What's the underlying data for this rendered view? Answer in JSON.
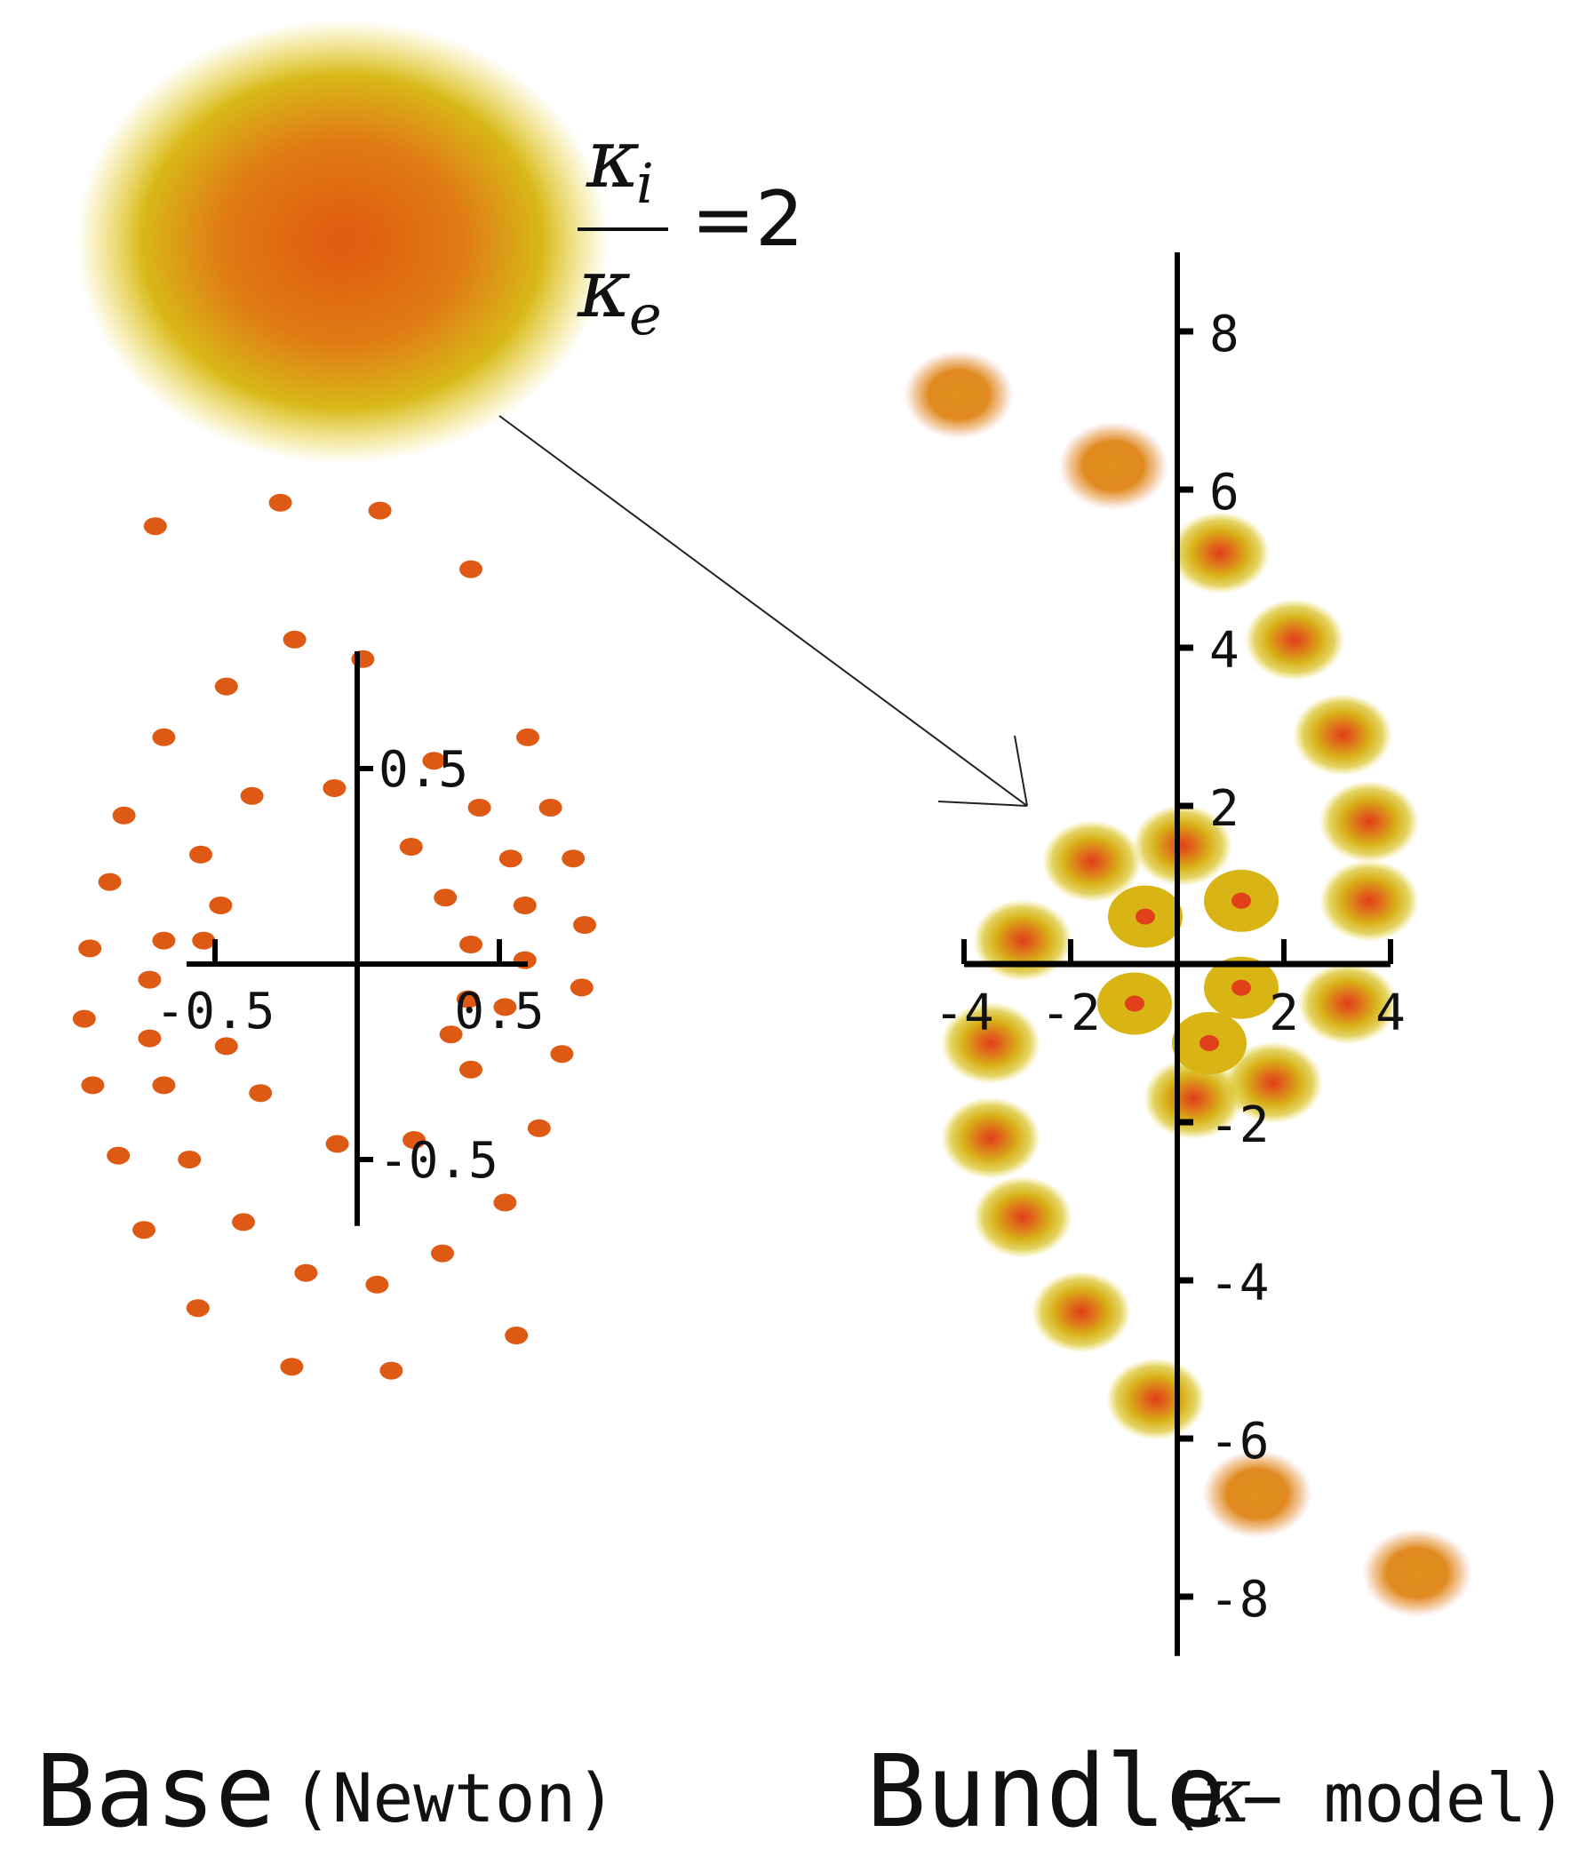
{
  "formula": {
    "numerator_symbol": "κ",
    "numerator_sub": "i",
    "denominator_symbol": "κ",
    "denominator_sub": "e",
    "relation": "=2"
  },
  "colors": {
    "dot": "#de5a14",
    "blob_core": "#e05a10",
    "blob_mid": "#d89a20",
    "blob_outer": "#d8c020",
    "blob_far": "#e08a20",
    "axis": "#000000"
  },
  "base_plot": {
    "x_ticks": [
      -0.5,
      0.5
    ],
    "y_ticks": [
      0.5,
      -0.5
    ],
    "x_tick_labels": [
      "-0.5",
      "0.5"
    ],
    "y_tick_labels": [
      "0.5",
      "-0.5"
    ],
    "points": [
      [
        -0.71,
        1.12
      ],
      [
        -0.27,
        1.18
      ],
      [
        0.08,
        1.16
      ],
      [
        0.4,
        1.01
      ],
      [
        -0.46,
        0.71
      ],
      [
        -0.22,
        0.83
      ],
      [
        0.02,
        0.78
      ],
      [
        0.27,
        0.52
      ],
      [
        0.6,
        0.58
      ],
      [
        -0.68,
        0.58
      ],
      [
        -0.37,
        0.43
      ],
      [
        -0.08,
        0.45
      ],
      [
        0.43,
        0.4
      ],
      [
        0.68,
        0.4
      ],
      [
        -0.82,
        0.38
      ],
      [
        -0.55,
        0.28
      ],
      [
        0.19,
        0.3
      ],
      [
        0.54,
        0.27
      ],
      [
        0.76,
        0.27
      ],
      [
        -0.87,
        0.21
      ],
      [
        -0.48,
        0.15
      ],
      [
        0.31,
        0.17
      ],
      [
        0.59,
        0.15
      ],
      [
        0.8,
        0.1
      ],
      [
        -0.94,
        0.04
      ],
      [
        -0.68,
        0.06
      ],
      [
        -0.54,
        0.06
      ],
      [
        0.4,
        0.05
      ],
      [
        0.59,
        0.01
      ],
      [
        -0.73,
        -0.04
      ],
      [
        0.39,
        -0.09
      ],
      [
        0.52,
        -0.11
      ],
      [
        0.79,
        -0.06
      ],
      [
        -0.96,
        -0.14
      ],
      [
        -0.73,
        -0.19
      ],
      [
        -0.46,
        -0.21
      ],
      [
        0.33,
        -0.18
      ],
      [
        0.72,
        -0.23
      ],
      [
        -0.93,
        -0.31
      ],
      [
        -0.68,
        -0.31
      ],
      [
        -0.34,
        -0.33
      ],
      [
        0.4,
        -0.27
      ],
      [
        0.64,
        -0.42
      ],
      [
        -0.84,
        -0.49
      ],
      [
        -0.59,
        -0.5
      ],
      [
        -0.07,
        -0.46
      ],
      [
        0.2,
        -0.45
      ],
      [
        0.52,
        -0.61
      ],
      [
        -0.75,
        -0.68
      ],
      [
        -0.4,
        -0.66
      ],
      [
        0.3,
        -0.74
      ],
      [
        -0.56,
        -0.88
      ],
      [
        -0.18,
        -0.79
      ],
      [
        0.07,
        -0.82
      ],
      [
        0.56,
        -0.95
      ],
      [
        -0.23,
        -1.03
      ],
      [
        0.12,
        -1.04
      ]
    ]
  },
  "bundle_plot": {
    "x_ticks": [
      -4,
      -2,
      2,
      4
    ],
    "y_ticks": [
      8,
      6,
      4,
      2,
      -2,
      -4,
      -6,
      -8
    ],
    "x_tick_labels": [
      "-4",
      "-2",
      "2",
      "4"
    ],
    "y_tick_labels": [
      "8",
      "6",
      "4",
      "2",
      "-2",
      "-4",
      "-6",
      "-8"
    ],
    "blobs_far": [
      [
        -4.1,
        7.2
      ],
      [
        -1.2,
        6.3
      ],
      [
        1.5,
        -6.7
      ],
      [
        4.5,
        -7.7
      ]
    ],
    "blobs_mid": [
      [
        0.8,
        5.2
      ],
      [
        2.2,
        4.1
      ],
      [
        3.1,
        2.9
      ],
      [
        3.6,
        1.8
      ],
      [
        3.6,
        0.8
      ],
      [
        -1.6,
        1.3
      ],
      [
        0.1,
        1.5
      ],
      [
        -2.9,
        0.3
      ],
      [
        3.2,
        -0.5
      ],
      [
        -3.5,
        -1.0
      ],
      [
        -3.5,
        -2.2
      ],
      [
        -2.9,
        -3.2
      ],
      [
        -1.8,
        -4.4
      ],
      [
        -0.4,
        -5.5
      ],
      [
        1.8,
        -1.5
      ],
      [
        0.3,
        -1.7
      ]
    ],
    "blobs_inner": [
      [
        -0.6,
        0.6
      ],
      [
        1.2,
        0.8
      ],
      [
        1.2,
        -0.3
      ],
      [
        -0.8,
        -0.5
      ],
      [
        0.6,
        -1.0
      ]
    ]
  },
  "captions": {
    "base_main": "Base",
    "base_paren": "(Newton)",
    "bundle_main": "Bundle",
    "bundle_kappa": "κ",
    "bundle_tail": " − model)",
    "bundle_open": "("
  }
}
